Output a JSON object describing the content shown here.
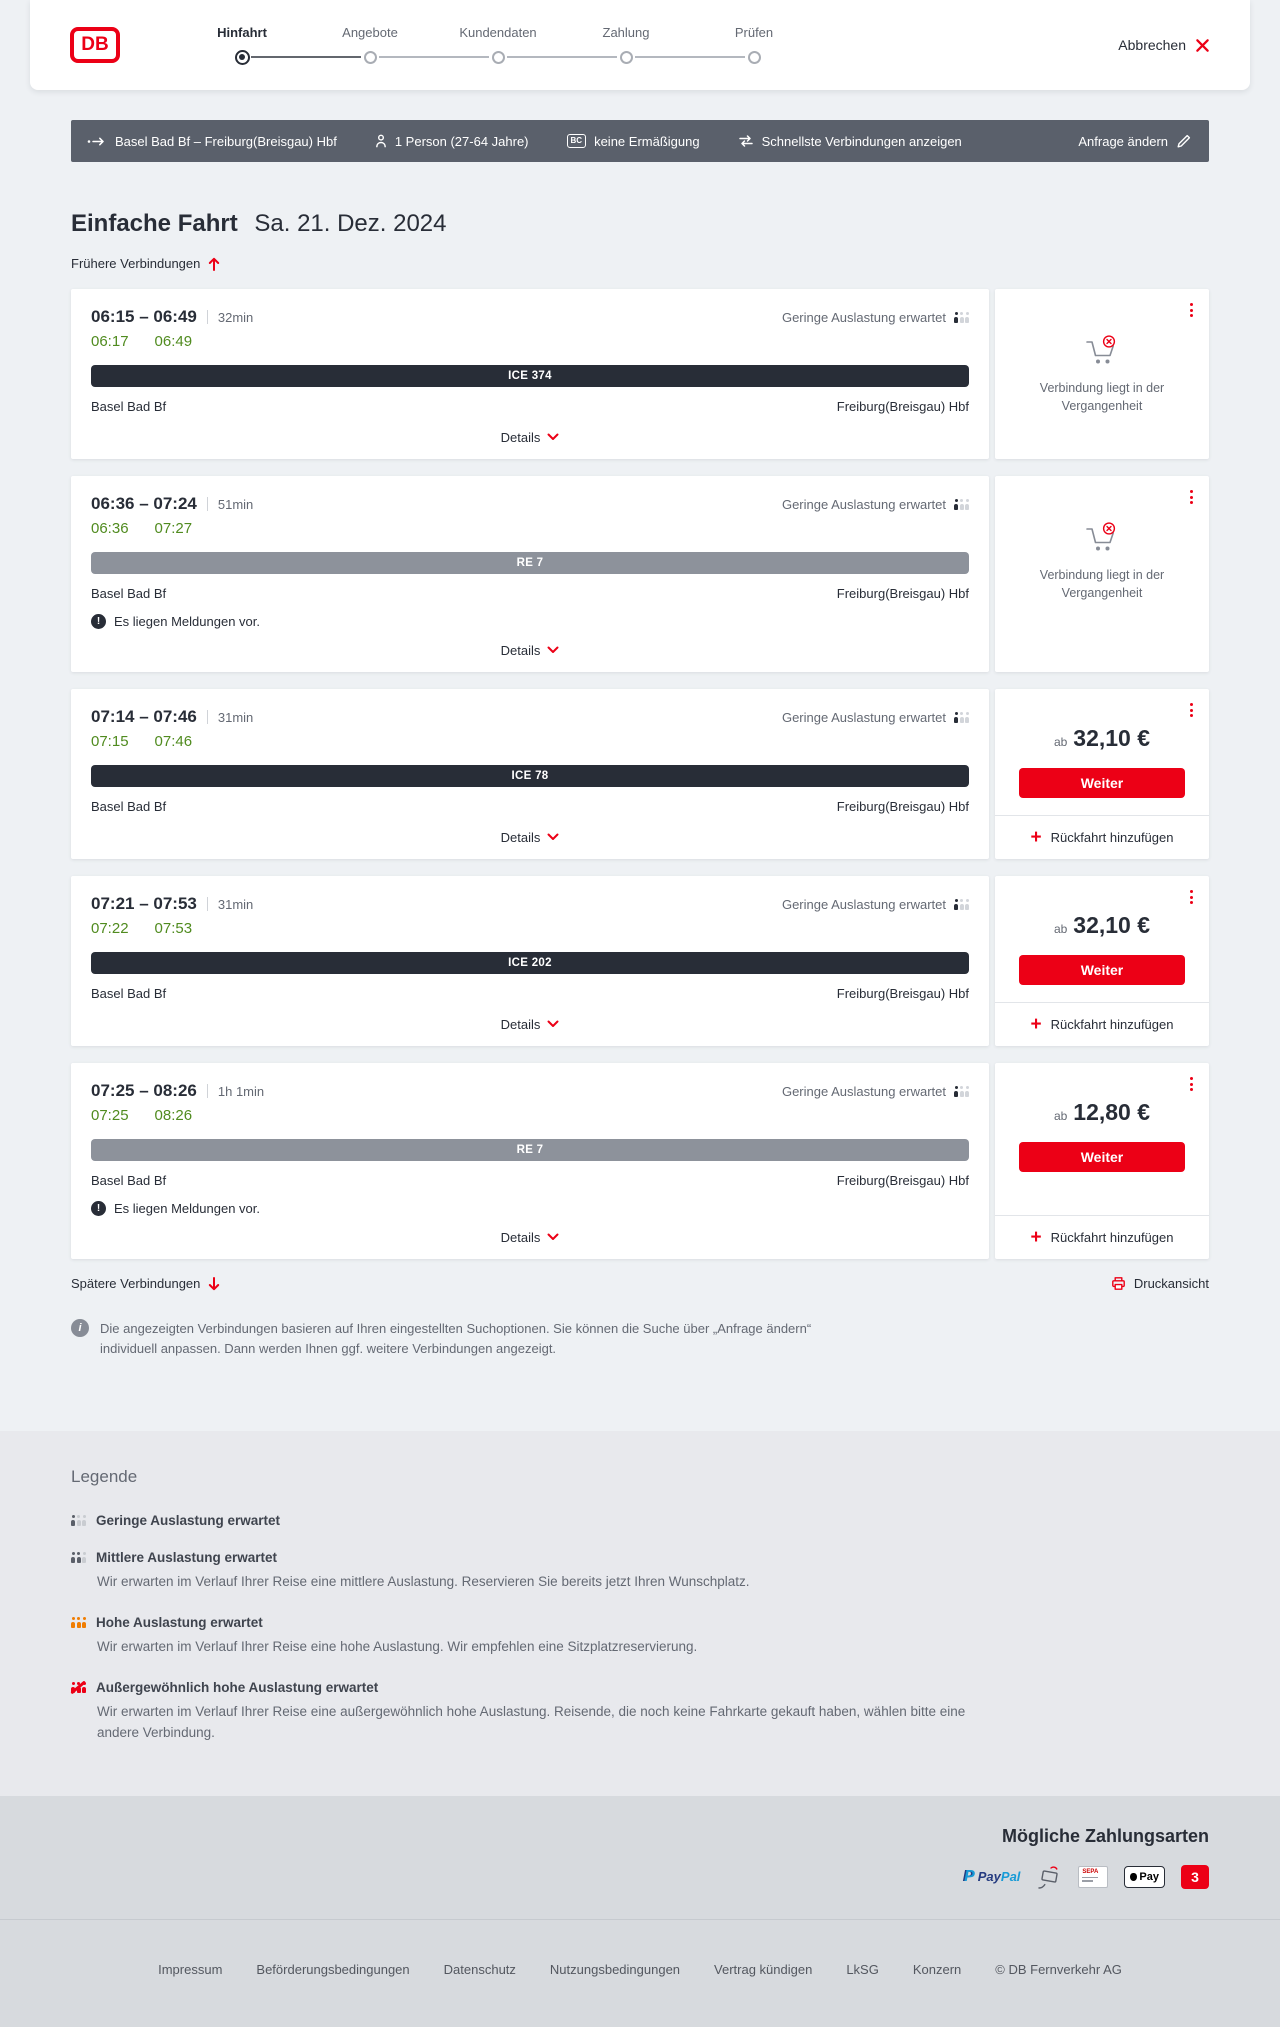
{
  "colors": {
    "brand_red": "#ec0016",
    "ontime_green": "#508b1f",
    "ice_bar": "#282d37",
    "re_bar": "#8d929b",
    "occupancy_orange": "#f07d02",
    "summary_bar_bg": "#5a606b"
  },
  "header": {
    "logo_text": "DB",
    "steps": [
      {
        "label": "Hinfahrt",
        "active": true
      },
      {
        "label": "Angebote",
        "active": false
      },
      {
        "label": "Kundendaten",
        "active": false
      },
      {
        "label": "Zahlung",
        "active": false
      },
      {
        "label": "Prüfen",
        "active": false
      }
    ],
    "cancel_label": "Abbrechen"
  },
  "summary_bar": {
    "route": "Basel Bad Bf – Freiburg(Breisgau) Hbf",
    "passengers": "1 Person (27-64 Jahre)",
    "bahncard_chip": "BC",
    "discount": "keine Ermäßigung",
    "sort": "Schnellste Verbindungen anzeigen",
    "edit": "Anfrage ändern"
  },
  "trip": {
    "title": "Einfache Fahrt",
    "date": "Sa. 21. Dez. 2024",
    "earlier_label": "Frühere Verbindungen",
    "later_label": "Spätere Verbindungen",
    "print_label": "Druckansicht"
  },
  "labels": {
    "details": "Details",
    "weiter": "Weiter",
    "add_return": "Rückfahrt hinzufügen",
    "price_prefix": "ab"
  },
  "connections": [
    {
      "times": "06:15 – 06:49",
      "duration": "32min",
      "occupancy": "Geringe Auslastung erwartet",
      "real_dep": "06:17",
      "real_arr": "06:49",
      "train": "ICE 374",
      "train_type": "ice",
      "from": "Basel Bad Bf",
      "to": "Freiburg(Breisgau) Hbf",
      "messages": null,
      "past": true,
      "past_text": "Verbindung liegt in der Vergangenheit",
      "price": null
    },
    {
      "times": "06:36 – 07:24",
      "duration": "51min",
      "occupancy": "Geringe Auslastung erwartet",
      "real_dep": "06:36",
      "real_arr": "07:27",
      "train": "RE 7",
      "train_type": "re",
      "from": "Basel Bad Bf",
      "to": "Freiburg(Breisgau) Hbf",
      "messages": "Es liegen Meldungen vor.",
      "past": true,
      "past_text": "Verbindung liegt in der Vergangenheit",
      "price": null
    },
    {
      "times": "07:14 – 07:46",
      "duration": "31min",
      "occupancy": "Geringe Auslastung erwartet",
      "real_dep": "07:15",
      "real_arr": "07:46",
      "train": "ICE 78",
      "train_type": "ice",
      "from": "Basel Bad Bf",
      "to": "Freiburg(Breisgau) Hbf",
      "messages": null,
      "past": false,
      "past_text": null,
      "price": "32,10 €"
    },
    {
      "times": "07:21 – 07:53",
      "duration": "31min",
      "occupancy": "Geringe Auslastung erwartet",
      "real_dep": "07:22",
      "real_arr": "07:53",
      "train": "ICE 202",
      "train_type": "ice",
      "from": "Basel Bad Bf",
      "to": "Freiburg(Breisgau) Hbf",
      "messages": null,
      "past": false,
      "past_text": null,
      "price": "32,10 €"
    },
    {
      "times": "07:25 – 08:26",
      "duration": "1h 1min",
      "occupancy": "Geringe Auslastung erwartet",
      "real_dep": "07:25",
      "real_arr": "08:26",
      "train": "RE 7",
      "train_type": "re",
      "from": "Basel Bad Bf",
      "to": "Freiburg(Breisgau) Hbf",
      "messages": "Es liegen Meldungen vor.",
      "past": false,
      "past_text": null,
      "price": "12,80 €"
    }
  ],
  "info_note": "Die angezeigten Verbindungen basieren auf Ihren eingestellten Suchoptionen. Sie können die Suche über „Anfrage ändern“ individuell anpassen. Dann werden Ihnen ggf. weitere Verbindungen angezeigt.",
  "legend": {
    "title": "Legende",
    "items": [
      {
        "level": "low",
        "label": "Geringe Auslastung erwartet",
        "desc": null
      },
      {
        "level": "medium",
        "label": "Mittlere Auslastung erwartet",
        "desc": "Wir erwarten im Verlauf Ihrer Reise eine mittlere Auslastung. Reservieren Sie bereits jetzt Ihren Wunschplatz."
      },
      {
        "level": "high",
        "label": "Hohe Auslastung erwartet",
        "desc": "Wir erwarten im Verlauf Ihrer Reise eine hohe Auslastung. Wir empfehlen eine Sitzplatzreservierung."
      },
      {
        "level": "very-high",
        "label": "Außergewöhnlich hohe Auslastung erwartet",
        "desc": "Wir erwarten im Verlauf Ihrer Reise eine außergewöhnlich hohe Auslastung. Reisende, die noch keine Fahrkarte gekauft haben, wählen bitte eine andere Verbindung."
      }
    ]
  },
  "payments": {
    "title": "Mögliche Zahlungsarten",
    "paypal_prefix": "Pay",
    "paypal_suffix": "Pal",
    "paypal_mark": "P",
    "sepa_text": "SEPA",
    "applepay_text": "Pay",
    "db_giftcard_glyph": "3"
  },
  "footer": {
    "links": [
      "Impressum",
      "Beförderungsbedingungen",
      "Datenschutz",
      "Nutzungsbedingungen",
      "Vertrag kündigen",
      "LkSG",
      "Konzern"
    ],
    "copyright": "© DB Fernverkehr AG"
  }
}
